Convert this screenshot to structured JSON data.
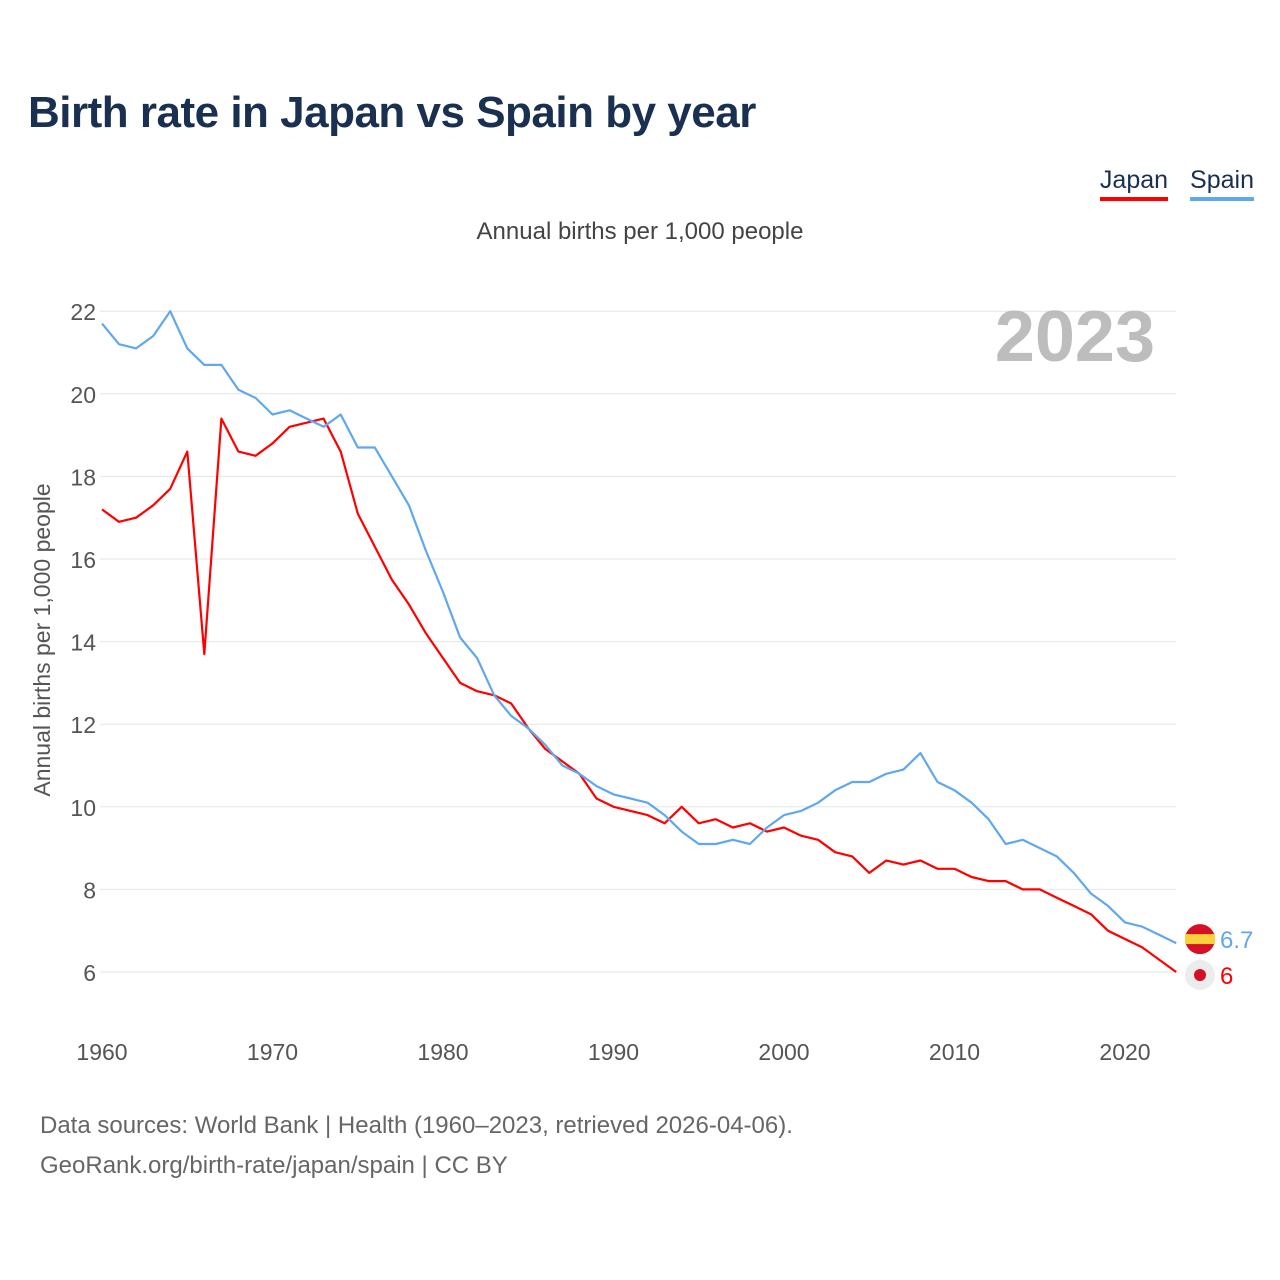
{
  "title": "Birth rate in Japan vs Spain by year",
  "subtitle": "Annual births per 1,000 people",
  "source_line1": "Data sources: World Bank | Health (1960–2023, retrieved 2026-04-06).",
  "source_line2": "GeoRank.org/birth-rate/japan/spain | CC BY",
  "chart_data": {
    "type": "line",
    "title": "Birth rate in Japan vs Spain by year",
    "ylabel": "Annual births per 1,000 people",
    "xlabel": "",
    "year_label": "2023",
    "xlim": [
      1960,
      2023
    ],
    "ylim": [
      5,
      22.5
    ],
    "yticks": [
      6,
      8,
      10,
      12,
      14,
      16,
      18,
      20,
      22
    ],
    "xticks": [
      1960,
      1970,
      1980,
      1990,
      2000,
      2010,
      2020
    ],
    "grid": true,
    "legend": "top-right",
    "x_start": 1960,
    "series": [
      {
        "name": "Japan",
        "color": "#ff0000",
        "end_label": "6",
        "values": [
          17.2,
          16.9,
          17.0,
          17.3,
          17.7,
          18.6,
          13.7,
          19.4,
          18.6,
          18.5,
          18.8,
          19.2,
          19.3,
          19.4,
          18.6,
          17.1,
          16.3,
          15.5,
          14.9,
          14.2,
          13.6,
          13.0,
          12.8,
          12.7,
          12.5,
          11.9,
          11.4,
          11.1,
          10.8,
          10.2,
          10.0,
          9.9,
          9.8,
          9.6,
          10.0,
          9.6,
          9.7,
          9.5,
          9.6,
          9.4,
          9.5,
          9.3,
          9.2,
          8.9,
          8.8,
          8.4,
          8.7,
          8.6,
          8.7,
          8.5,
          8.5,
          8.3,
          8.2,
          8.2,
          8.0,
          8.0,
          7.8,
          7.6,
          7.4,
          7.0,
          6.8,
          6.6,
          6.3,
          6.0
        ]
      },
      {
        "name": "Spain",
        "color": "#5fa8ee",
        "end_label": "6.7",
        "values": [
          21.7,
          21.2,
          21.1,
          21.4,
          22.0,
          21.1,
          20.7,
          20.7,
          20.1,
          19.9,
          19.5,
          19.6,
          19.4,
          19.2,
          19.5,
          18.7,
          18.7,
          18.0,
          17.3,
          16.2,
          15.2,
          14.1,
          13.6,
          12.7,
          12.2,
          11.9,
          11.5,
          11.0,
          10.8,
          10.5,
          10.3,
          10.2,
          10.1,
          9.8,
          9.4,
          9.1,
          9.1,
          9.2,
          9.1,
          9.5,
          9.8,
          9.9,
          10.1,
          10.4,
          10.6,
          10.6,
          10.8,
          10.9,
          11.3,
          10.6,
          10.4,
          10.1,
          9.7,
          9.1,
          9.2,
          9.0,
          8.8,
          8.4,
          7.9,
          7.6,
          7.2,
          7.1,
          6.9,
          6.7
        ]
      }
    ]
  }
}
